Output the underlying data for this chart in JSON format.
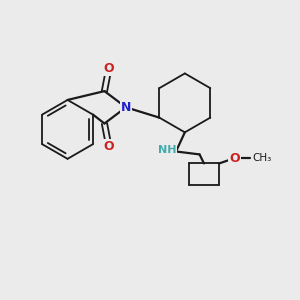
{
  "background_color": "#ebebeb",
  "bond_color": "#1a1a1a",
  "N_color": "#2222cc",
  "O_color": "#cc2222",
  "NH_color": "#44aaaa",
  "figsize": [
    3.0,
    3.0
  ],
  "dpi": 100,
  "xlim": [
    0,
    10
  ],
  "ylim": [
    0,
    10
  ]
}
